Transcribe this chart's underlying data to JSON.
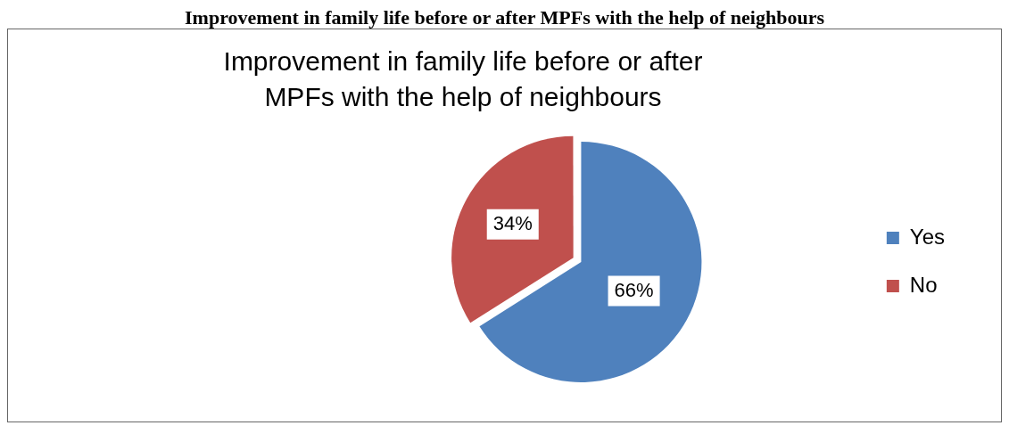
{
  "chart_data": {
    "type": "pie",
    "title": "Improvement in family life before or after MPFs with the help of neighbours",
    "annotations": [
      "Improvement in family life before or after MPFs with the help of neighbours"
    ],
    "categories": [
      "Yes",
      "No"
    ],
    "values": [
      66,
      34
    ],
    "colors": [
      "#4f81bd",
      "#c0504d"
    ],
    "value_labels": [
      "66%",
      "34%"
    ],
    "legend": "right"
  }
}
